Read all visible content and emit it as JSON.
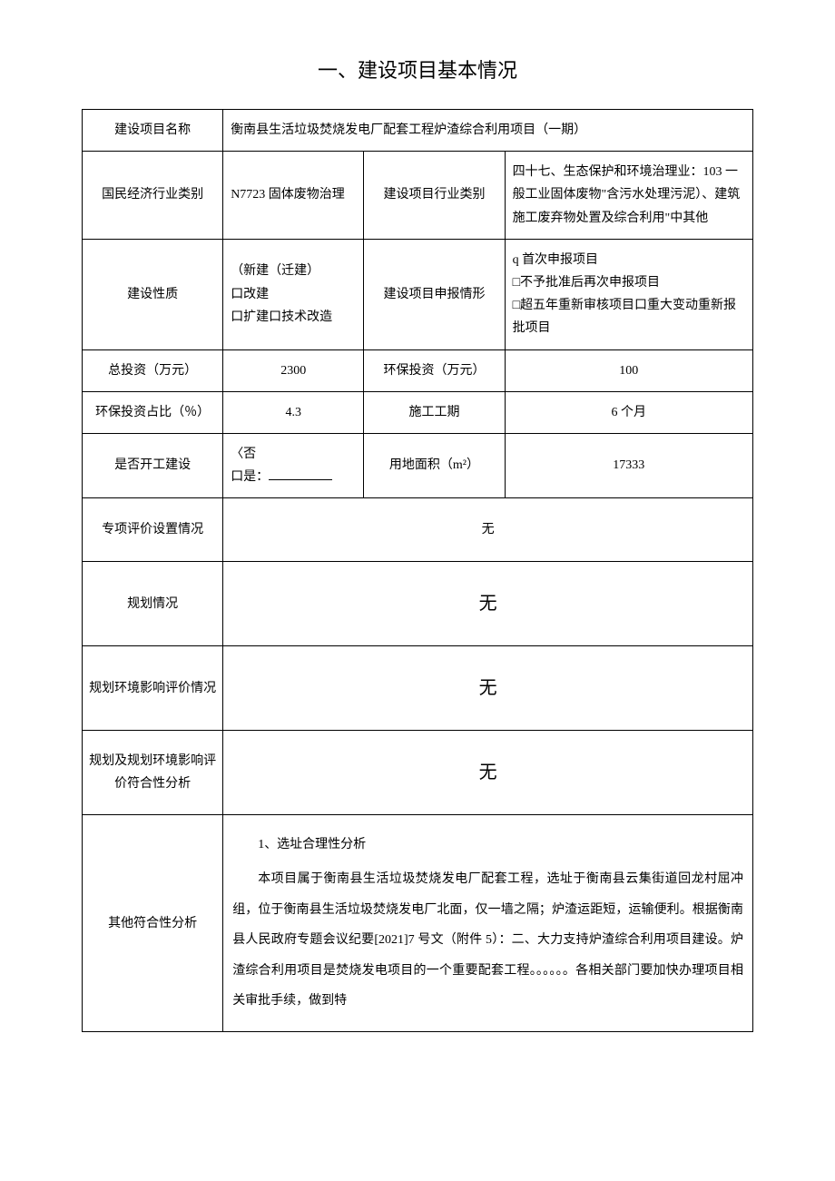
{
  "title": "一、建设项目基本情况",
  "rows": {
    "projectName": {
      "label": "建设项目名称",
      "value": "衡南县生活垃圾焚烧发电厂配套工程炉渣综合利用项目（一期）"
    },
    "industry": {
      "label1": "国民经济行业类别",
      "value1": "N7723 固体废物治理",
      "label2": "建设项目行业类别",
      "value2": "四十七、生态保护和环境治理业：103 一般工业固体废物\"含污水处理污泥）、建筑施工废弃物处置及综合利用\"中其他"
    },
    "nature": {
      "label1": "建设性质",
      "value1_line1": "（新建（迁建）",
      "value1_line2": "口改建",
      "value1_line3": "口扩建口技术改造",
      "label2": "建设项目申报情形",
      "value2_line1": "q 首次申报项目",
      "value2_line2": "□不予批准后再次申报项目",
      "value2_line3": "□超五年重新审核项目口重大变动重新报批项目"
    },
    "invest": {
      "label1": "总投资（万元）",
      "value1": "2300",
      "label2": "环保投资（万元）",
      "value2": "100"
    },
    "ratio": {
      "label1": "环保投资占比（％）",
      "value1": "4.3",
      "label2": "施工工期",
      "value2": "6 个月"
    },
    "started": {
      "label1": "是否开工建设",
      "value1_line1": "〈否",
      "value1_line2": "口是：",
      "label2": "用地面积（m²）",
      "value2": "17333"
    },
    "special": {
      "label": "专项评价设置情况",
      "value": "无"
    },
    "planning": {
      "label": "规划情况",
      "value": "无"
    },
    "planEnv": {
      "label": "规划环境影响评价情况",
      "value": "无"
    },
    "planConform": {
      "label": "规划及规划环境影响评价符合性分析",
      "value": "无"
    },
    "other": {
      "label": "其他符合性分析",
      "heading": "1、选址合理性分析",
      "body": "本项目属于衡南县生活垃圾焚烧发电厂配套工程，选址于衡南县云集街道回龙村屈冲组，位于衡南县生活垃圾焚烧发电厂北面，仅一墙之隔；炉渣运距短，运输便利。根据衡南县人民政府专题会议纪要[2021]7 号文（附件 5）：二、大力支持炉渣综合利用项目建设。炉渣综合利用项目是焚烧发电项目的一个重要配套工程。。。。。。各相关部门要加快办理项目相关审批手续，做到特"
    }
  }
}
